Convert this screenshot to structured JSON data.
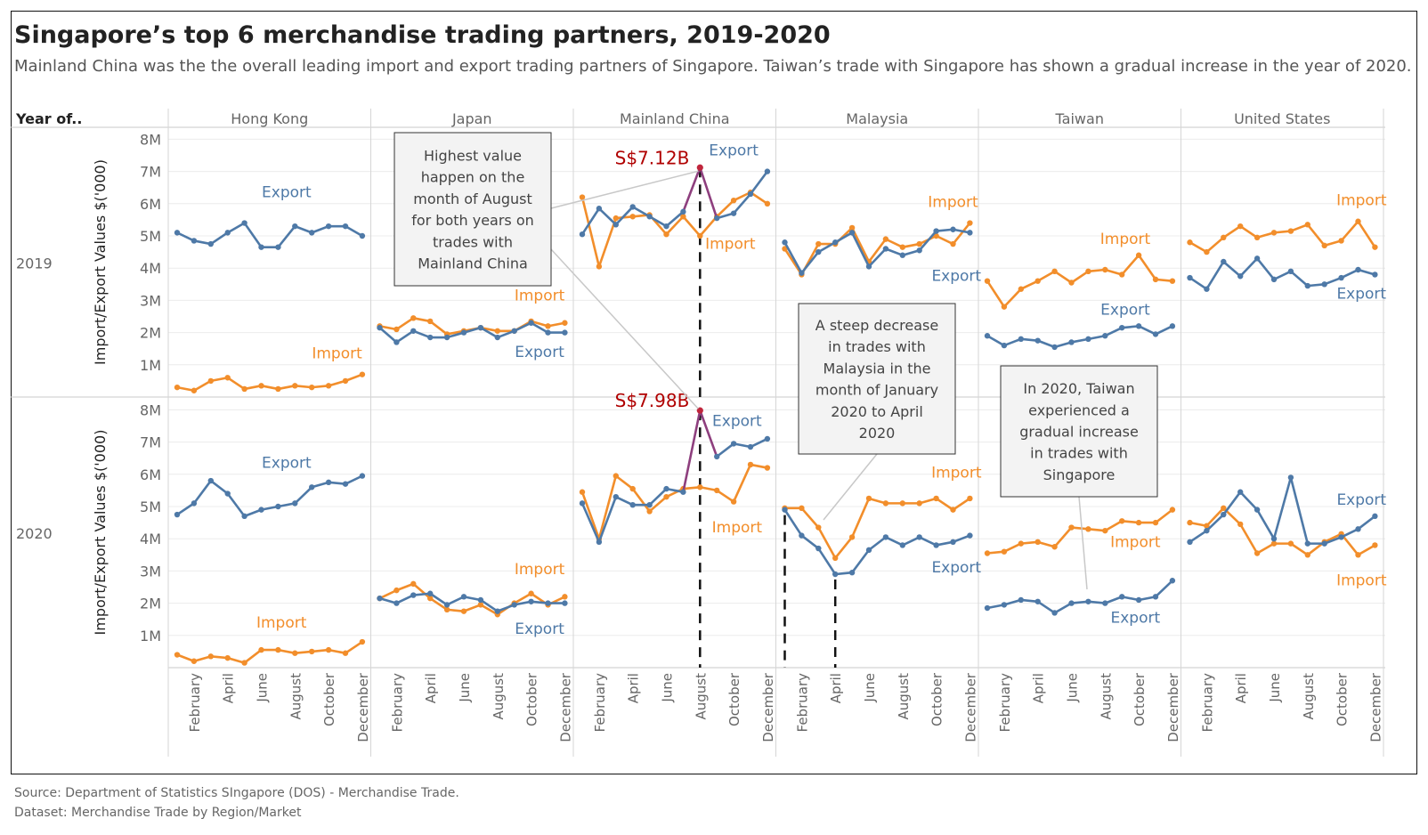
{
  "title": "Singapore’s top 6 merchandise trading partners, 2019-2020",
  "subtitle": "Mainland China was the the overall leading import and export trading partners of Singapore. Taiwan’s trade with Singapore has shown a gradual increase in the year of 2020.",
  "footer": {
    "source": "Source: Department of Statistics SIngapore (DOS) - Merchandise Trade.",
    "dataset": "Dataset: Merchandise Trade by Region/Market"
  },
  "colors": {
    "export": "#4e79a7",
    "import": "#f28e2b",
    "highlight": "#c0263c",
    "highlight_line": "#8e3f7e",
    "annotation_value": "#b00000"
  },
  "chart_data": {
    "type": "line",
    "row_header": "Year of..",
    "ylabel": "Import/Export Values $('000)",
    "ylim": [
      0,
      8.5
    ],
    "yticks": [
      "1M",
      "2M",
      "3M",
      "4M",
      "5M",
      "6M",
      "7M",
      "8M"
    ],
    "ytick_values": [
      1,
      2,
      3,
      4,
      5,
      6,
      7,
      8
    ],
    "grid": true,
    "months": [
      "January",
      "February",
      "March",
      "April",
      "May",
      "June",
      "July",
      "August",
      "September",
      "October",
      "November",
      "December"
    ],
    "xtick_labels": [
      "February",
      "April",
      "June",
      "August",
      "October",
      "December"
    ],
    "partners": [
      "Hong Kong",
      "Japan",
      "Mainland China",
      "Malaysia",
      "Taiwan",
      "United States"
    ],
    "years": [
      "2019",
      "2020"
    ],
    "series_names": [
      "Export",
      "Import"
    ],
    "values": {
      "2019": {
        "Hong Kong": {
          "Export": [
            5.1,
            4.85,
            4.75,
            5.1,
            5.4,
            4.65,
            4.65,
            5.3,
            5.1,
            5.3,
            5.3,
            5.0
          ],
          "Import": [
            0.3,
            0.2,
            0.5,
            0.6,
            0.25,
            0.35,
            0.25,
            0.35,
            0.3,
            0.35,
            0.5,
            0.7
          ]
        },
        "Japan": {
          "Export": [
            2.15,
            1.7,
            2.05,
            1.85,
            1.85,
            2.0,
            2.15,
            1.85,
            2.05,
            2.3,
            2.0,
            2.0
          ],
          "Import": [
            2.2,
            2.1,
            2.45,
            2.35,
            1.95,
            2.05,
            2.15,
            2.05,
            2.05,
            2.35,
            2.2,
            2.3
          ]
        },
        "Mainland China": {
          "Export": [
            5.05,
            5.85,
            5.35,
            5.9,
            5.6,
            5.3,
            5.75,
            7.12,
            5.55,
            5.7,
            6.3,
            7.0
          ],
          "Import": [
            6.2,
            4.05,
            5.55,
            5.6,
            5.65,
            5.05,
            5.6,
            5.0,
            5.6,
            6.1,
            6.35,
            6.0
          ]
        },
        "Malaysia": {
          "Export": [
            4.8,
            3.85,
            4.5,
            4.8,
            5.1,
            4.05,
            4.6,
            4.4,
            4.55,
            5.15,
            5.2,
            5.1
          ],
          "Import": [
            4.6,
            3.8,
            4.75,
            4.75,
            5.25,
            4.2,
            4.9,
            4.65,
            4.75,
            5.0,
            4.75,
            5.4
          ]
        },
        "Taiwan": {
          "Export": [
            1.9,
            1.6,
            1.8,
            1.75,
            1.55,
            1.7,
            1.8,
            1.9,
            2.15,
            2.2,
            1.95,
            2.2
          ],
          "Import": [
            3.6,
            2.8,
            3.35,
            3.6,
            3.9,
            3.55,
            3.9,
            3.95,
            3.8,
            4.4,
            3.65,
            3.6
          ]
        },
        "United States": {
          "Export": [
            3.7,
            3.35,
            4.2,
            3.75,
            4.3,
            3.65,
            3.9,
            3.45,
            3.5,
            3.7,
            3.95,
            3.8
          ],
          "Import": [
            4.8,
            4.5,
            4.95,
            5.3,
            4.95,
            5.1,
            5.15,
            5.35,
            4.7,
            4.85,
            5.45,
            4.65
          ]
        }
      },
      "2020": {
        "Hong Kong": {
          "Export": [
            4.75,
            5.1,
            5.8,
            5.4,
            4.7,
            4.9,
            5.0,
            5.1,
            5.6,
            5.75,
            5.7,
            5.95
          ],
          "Import": [
            0.4,
            0.2,
            0.35,
            0.3,
            0.15,
            0.55,
            0.55,
            0.45,
            0.5,
            0.55,
            0.45,
            0.8
          ]
        },
        "Japan": {
          "Export": [
            2.15,
            2.0,
            2.25,
            2.3,
            1.95,
            2.2,
            2.1,
            1.75,
            1.95,
            2.05,
            2.0,
            2.0
          ],
          "Import": [
            2.15,
            2.4,
            2.6,
            2.15,
            1.8,
            1.75,
            1.95,
            1.65,
            2.0,
            2.3,
            1.95,
            2.2
          ]
        },
        "Mainland China": {
          "Export": [
            5.1,
            3.9,
            5.3,
            5.05,
            5.05,
            5.55,
            5.45,
            7.98,
            6.55,
            6.95,
            6.85,
            7.1
          ],
          "Import": [
            5.45,
            4.0,
            5.95,
            5.55,
            4.85,
            5.3,
            5.55,
            5.6,
            5.5,
            5.15,
            6.3,
            6.2
          ]
        },
        "Malaysia": {
          "Export": [
            4.9,
            4.1,
            3.7,
            2.9,
            2.95,
            3.65,
            4.05,
            3.8,
            4.05,
            3.8,
            3.9,
            4.1
          ],
          "Import": [
            4.95,
            4.95,
            4.35,
            3.4,
            4.05,
            5.25,
            5.1,
            5.1,
            5.1,
            5.25,
            4.9,
            5.25
          ]
        },
        "Taiwan": {
          "Export": [
            1.85,
            1.95,
            2.1,
            2.05,
            1.7,
            2.0,
            2.05,
            2.0,
            2.2,
            2.1,
            2.2,
            2.7
          ],
          "Import": [
            3.55,
            3.6,
            3.85,
            3.9,
            3.75,
            4.35,
            4.3,
            4.25,
            4.55,
            4.5,
            4.5,
            4.9
          ]
        },
        "United States": {
          "Export": [
            3.9,
            4.25,
            4.75,
            5.45,
            4.9,
            4.0,
            5.9,
            3.85,
            3.85,
            4.05,
            4.3,
            4.7
          ],
          "Import": [
            4.5,
            4.4,
            4.95,
            4.45,
            3.55,
            3.85,
            3.85,
            3.5,
            3.9,
            4.15,
            3.5,
            3.8
          ]
        }
      }
    },
    "series_labels": [
      {
        "year": "2019",
        "partner": "Hong Kong",
        "text": "Export",
        "series": "Export",
        "at": [
          6.5,
          6.2
        ]
      },
      {
        "year": "2019",
        "partner": "Hong Kong",
        "text": "Import",
        "series": "Import",
        "at": [
          9.5,
          1.2
        ]
      },
      {
        "year": "2019",
        "partner": "Japan",
        "text": "Import",
        "series": "Import",
        "at": [
          9.5,
          3.0
        ]
      },
      {
        "year": "2019",
        "partner": "Japan",
        "text": "Export",
        "series": "Export",
        "at": [
          9.5,
          1.25
        ]
      },
      {
        "year": "2019",
        "partner": "Mainland China",
        "text": "Export",
        "series": "Export",
        "at": [
          9.0,
          7.5
        ]
      },
      {
        "year": "2019",
        "partner": "Mainland China",
        "text": "Import",
        "series": "Import",
        "at": [
          8.8,
          4.6
        ]
      },
      {
        "year": "2019",
        "partner": "Malaysia",
        "text": "Import",
        "series": "Import",
        "at": [
          10.0,
          5.9
        ]
      },
      {
        "year": "2019",
        "partner": "Malaysia",
        "text": "Export",
        "series": "Export",
        "at": [
          10.2,
          3.6
        ]
      },
      {
        "year": "2019",
        "partner": "Taiwan",
        "text": "Import",
        "series": "Import",
        "at": [
          8.2,
          4.75
        ]
      },
      {
        "year": "2019",
        "partner": "Taiwan",
        "text": "Export",
        "series": "Export",
        "at": [
          8.2,
          2.55
        ]
      },
      {
        "year": "2019",
        "partner": "United States",
        "text": "Import",
        "series": "Import",
        "at": [
          10.2,
          5.95
        ]
      },
      {
        "year": "2019",
        "partner": "United States",
        "text": "Export",
        "series": "Export",
        "at": [
          10.2,
          3.05
        ]
      },
      {
        "year": "2020",
        "partner": "Hong Kong",
        "text": "Export",
        "series": "Export",
        "at": [
          6.5,
          6.2
        ]
      },
      {
        "year": "2020",
        "partner": "Hong Kong",
        "text": "Import",
        "series": "Import",
        "at": [
          6.2,
          1.25
        ]
      },
      {
        "year": "2020",
        "partner": "Japan",
        "text": "Import",
        "series": "Import",
        "at": [
          9.5,
          2.9
        ]
      },
      {
        "year": "2020",
        "partner": "Japan",
        "text": "Export",
        "series": "Export",
        "at": [
          9.5,
          1.05
        ]
      },
      {
        "year": "2020",
        "partner": "Mainland China",
        "text": "Export",
        "series": "Export",
        "at": [
          9.2,
          7.5
        ]
      },
      {
        "year": "2020",
        "partner": "Mainland China",
        "text": "Import",
        "series": "Import",
        "at": [
          9.2,
          4.2
        ]
      },
      {
        "year": "2020",
        "partner": "Malaysia",
        "text": "Import",
        "series": "Import",
        "at": [
          10.2,
          5.9
        ]
      },
      {
        "year": "2020",
        "partner": "Malaysia",
        "text": "Export",
        "series": "Export",
        "at": [
          10.2,
          2.95
        ]
      },
      {
        "year": "2020",
        "partner": "Taiwan",
        "text": "Import",
        "series": "Import",
        "at": [
          8.8,
          3.75
        ]
      },
      {
        "year": "2020",
        "partner": "Taiwan",
        "text": "Export",
        "series": "Export",
        "at": [
          8.8,
          1.4
        ]
      },
      {
        "year": "2020",
        "partner": "United States",
        "text": "Export",
        "series": "Export",
        "at": [
          10.2,
          5.05
        ]
      },
      {
        "year": "2020",
        "partner": "United States",
        "text": "Import",
        "series": "Import",
        "at": [
          10.2,
          2.55
        ]
      }
    ],
    "annotations": [
      {
        "text": "Highest value happen on the month of August for both years on trades with Mainland China"
      },
      {
        "text": "A steep decrease in trades with Malaysia in the month of January 2020 to April 2020"
      },
      {
        "text": "In 2020, Taiwan experienced a gradual increase in trades with Singapore"
      }
    ],
    "value_labels": [
      {
        "year": "2019",
        "partner": "Mainland China",
        "month": "August",
        "text": "S$7.12B"
      },
      {
        "year": "2020",
        "partner": "Mainland China",
        "month": "August",
        "text": "S$7.98B"
      }
    ]
  }
}
